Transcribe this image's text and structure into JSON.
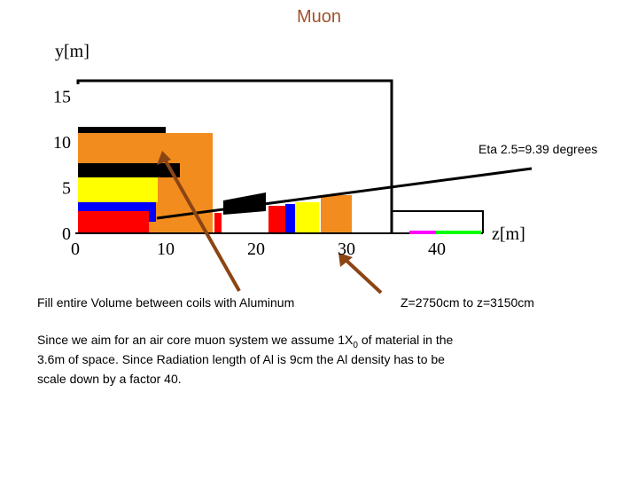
{
  "title": "Muon",
  "y_axis": {
    "label": "y[m]",
    "ticks": [
      0,
      5,
      10,
      15
    ]
  },
  "z_axis": {
    "label": "z[m]",
    "ticks": [
      0,
      10,
      20,
      30,
      40
    ]
  },
  "eta_label": "Eta 2.5=9.39 degrees",
  "annotations": [
    "Fill entire Volume between coils with Aluminum",
    "Z=2750cm to z=3150cm"
  ],
  "paragraph": {
    "before_sub": "Since we aim for an air core muon system we assume 1X",
    "sub": "0",
    "lines": [
      " of material in the",
      "3.6m of space. Since Radiation length of  Al is 9cm the Al density has to be",
      "scale down by a factor 40."
    ]
  }
}
